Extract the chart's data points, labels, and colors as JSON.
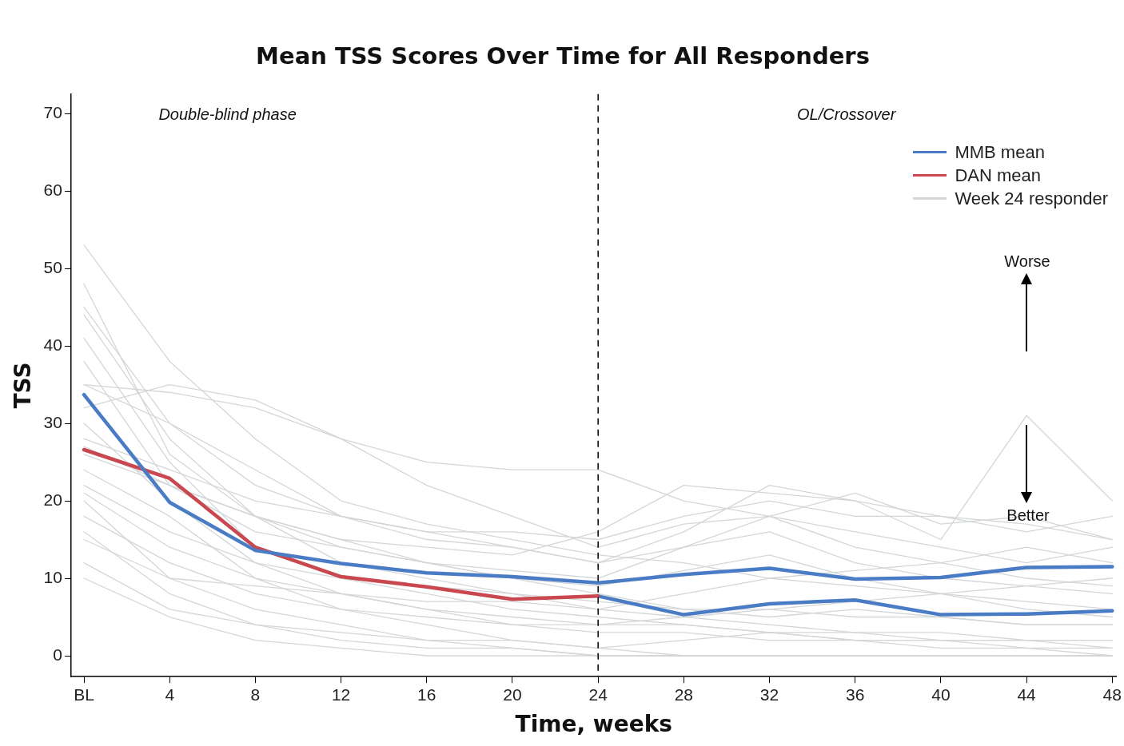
{
  "chart_data": {
    "type": "line",
    "title": "Mean TSS Scores Over Time for All Responders",
    "xlabel": "Time, weeks",
    "ylabel": "TSS",
    "x": [
      0,
      4,
      8,
      12,
      16,
      20,
      24,
      28,
      32,
      36,
      40,
      44,
      48
    ],
    "xlim": [
      -0.6,
      48.2
    ],
    "xticks": [
      {
        "value": 0,
        "label": "BL"
      },
      4,
      8,
      12,
      16,
      20,
      24,
      28,
      32,
      36,
      40,
      44,
      48
    ],
    "ylim": [
      -2.7,
      72.5
    ],
    "yticks": [
      0,
      10,
      20,
      30,
      40,
      50,
      60,
      70
    ],
    "grid": false,
    "legend": "top right",
    "marker": "none",
    "ref_lines": [
      {
        "axis": "x",
        "value": 24,
        "line_style": "dashed",
        "color": "#000000"
      }
    ],
    "annotations": [
      "Double-blind phase",
      "OL/Crossover",
      "Worse",
      "Better"
    ],
    "series": [
      {
        "name": "Week 24 responder",
        "color": "#d3d6d8",
        "values": [
          53,
          38,
          28,
          20,
          17,
          15,
          13,
          12,
          10,
          9,
          8,
          7,
          6
        ]
      },
      {
        "color": "#d3d6d8",
        "values": [
          45,
          30,
          22,
          18,
          15,
          14,
          12,
          14,
          16,
          12,
          10,
          9,
          8
        ]
      },
      {
        "color": "#d3d6d8",
        "values": [
          44,
          28,
          18,
          12,
          10,
          8,
          6,
          5,
          4,
          3,
          3,
          2,
          2
        ]
      },
      {
        "color": "#d3d6d8",
        "values": [
          41,
          25,
          14,
          10,
          8,
          6,
          5,
          4,
          3,
          2,
          2,
          2,
          1
        ]
      },
      {
        "color": "#d3d6d8",
        "values": [
          38,
          22,
          16,
          14,
          12,
          10,
          9,
          11,
          13,
          10,
          8,
          9,
          10
        ]
      },
      {
        "color": "#d3d6d8",
        "values": [
          35,
          30,
          24,
          18,
          16,
          14,
          12,
          16,
          22,
          20,
          15,
          31,
          20
        ]
      },
      {
        "color": "#d3d6d8",
        "values": [
          32,
          35,
          33,
          28,
          22,
          18,
          14,
          17,
          18,
          14,
          12,
          14,
          12
        ]
      },
      {
        "color": "#d3d6d8",
        "values": [
          30,
          20,
          12,
          8,
          6,
          4,
          3,
          3,
          2,
          2,
          1,
          1,
          0
        ]
      },
      {
        "color": "#d3d6d8",
        "values": [
          28,
          24,
          20,
          18,
          16,
          16,
          15,
          18,
          20,
          18,
          18,
          16,
          18
        ]
      },
      {
        "color": "#d3d6d8",
        "values": [
          26,
          22,
          18,
          14,
          12,
          10,
          8,
          6,
          5,
          6,
          5,
          4,
          4
        ]
      },
      {
        "color": "#d3d6d8",
        "values": [
          24,
          18,
          10,
          6,
          4,
          2,
          1,
          0,
          0,
          0,
          0,
          0,
          0
        ]
      },
      {
        "color": "#d3d6d8",
        "values": [
          22,
          16,
          12,
          10,
          9,
          8,
          7,
          6,
          6,
          5,
          5,
          4,
          4
        ]
      },
      {
        "color": "#d3d6d8",
        "values": [
          21,
          14,
          10,
          8,
          6,
          5,
          4,
          4,
          3,
          3,
          2,
          2,
          2
        ]
      },
      {
        "color": "#d3d6d8",
        "values": [
          20,
          10,
          6,
          4,
          2,
          1,
          0,
          0,
          0,
          0,
          0,
          0,
          0
        ]
      },
      {
        "color": "#d3d6d8",
        "values": [
          18,
          12,
          8,
          6,
          5,
          4,
          4,
          5,
          6,
          7,
          8,
          6,
          5
        ]
      },
      {
        "color": "#d3d6d8",
        "values": [
          16,
          8,
          4,
          2,
          1,
          1,
          0,
          0,
          0,
          0,
          0,
          0,
          0
        ]
      },
      {
        "color": "#d3d6d8",
        "values": [
          15,
          10,
          9,
          8,
          7,
          7,
          6,
          8,
          10,
          11,
          12,
          10,
          9
        ]
      },
      {
        "color": "#d3d6d8",
        "values": [
          12,
          6,
          4,
          3,
          2,
          2,
          1,
          2,
          3,
          2,
          2,
          1,
          1
        ]
      },
      {
        "color": "#d3d6d8",
        "values": [
          10,
          5,
          2,
          1,
          0,
          0,
          0,
          0,
          0,
          0,
          0,
          0,
          0
        ]
      },
      {
        "color": "#d3d6d8",
        "values": [
          35,
          34,
          32,
          28,
          25,
          24,
          24,
          20,
          18,
          21,
          17,
          18,
          15
        ]
      },
      {
        "color": "#d3d6d8",
        "values": [
          48,
          26,
          18,
          15,
          12,
          11,
          10,
          14,
          18,
          16,
          14,
          12,
          14
        ]
      },
      {
        "color": "#d3d6d8",
        "values": [
          27,
          22,
          18,
          15,
          14,
          13,
          16,
          22,
          21,
          20,
          18,
          17,
          15
        ]
      },
      {
        "name": "MMB mean",
        "color": "#4a7cc6",
        "values": [
          33.7,
          19.8,
          13.6,
          11.9,
          10.7,
          10.2,
          9.4,
          10.5,
          11.3,
          9.9,
          10.1,
          11.4,
          11.5
        ]
      },
      {
        "name": "DAN mean",
        "color": "#c9474f",
        "values": [
          26.6,
          22.9,
          14,
          10.2,
          8.9,
          7.3,
          7.7,
          null,
          null,
          null,
          null,
          null,
          null
        ]
      },
      {
        "color": "#4a7cc6",
        "values": [
          null,
          null,
          null,
          null,
          null,
          null,
          7.7,
          5.3,
          6.7,
          7.2,
          5.3,
          5.4,
          5.8
        ]
      }
    ]
  }
}
